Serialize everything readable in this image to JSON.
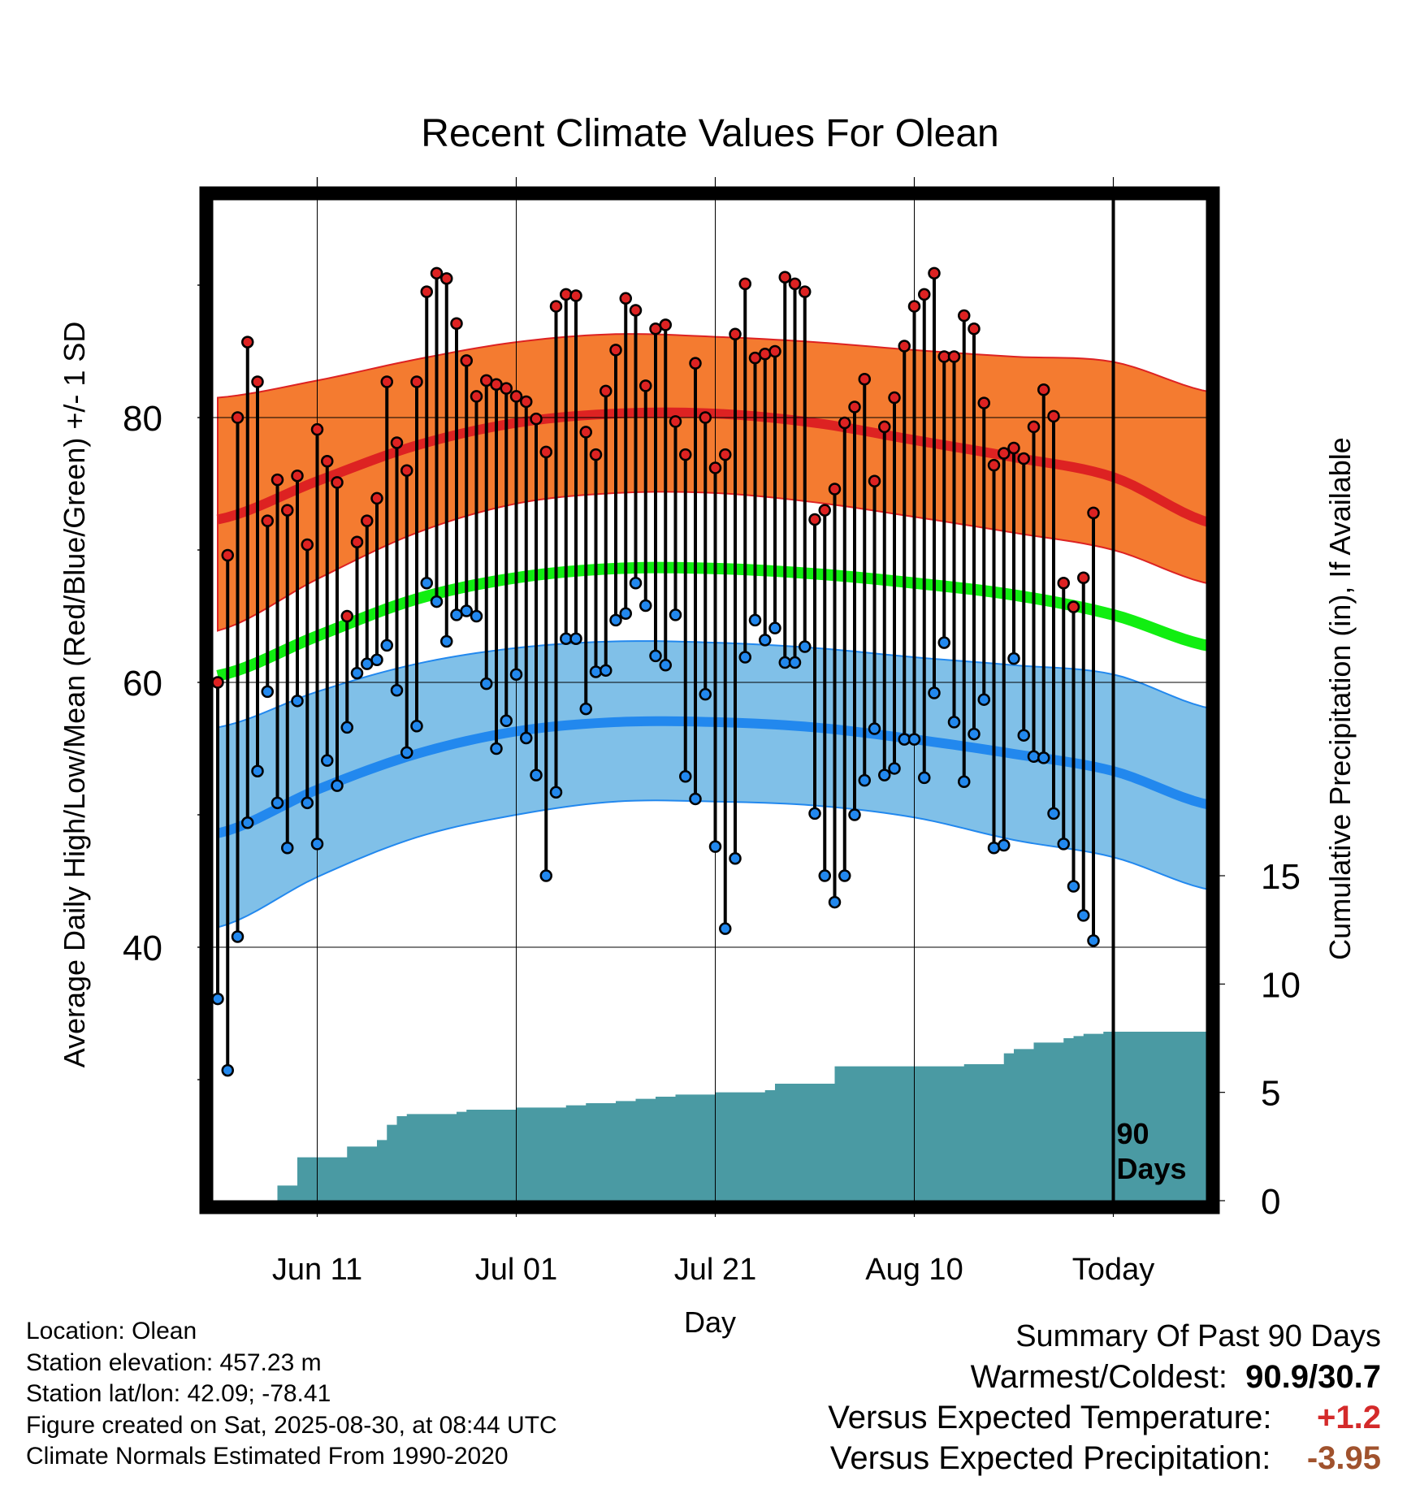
{
  "chart_data": {
    "type": "line",
    "title": "Recent Climate Values For Olean",
    "xlabel": "Day",
    "ylabel": "Average Daily High/Low/Mean (Red/Blue/Green) +/- 1 SD",
    "y2label": "Cumulative Precipitation (in), If Available",
    "ylim": [
      27.8,
      103.4
    ],
    "y2lim": [
      0,
      46.2
    ],
    "y_ticks": [
      40,
      60,
      80
    ],
    "y2_ticks": [
      0,
      5,
      10,
      15
    ],
    "x_tick_labels": [
      "Jun 11",
      "Jul 01",
      "Jul 21",
      "Aug 10",
      "Today"
    ],
    "x_tick_days": [
      10,
      30,
      50,
      70,
      90
    ],
    "today_marker_label": [
      "90",
      "Days"
    ],
    "grid": true,
    "colors": {
      "high": "#dd2222",
      "high_band": "#f47b30",
      "low": "#2288ee",
      "low_band": "#80c0e8",
      "mean": "#11ee11",
      "precip": "#4a9aa3"
    },
    "normals": {
      "day": [
        0,
        10,
        20,
        30,
        40,
        50,
        60,
        70,
        80,
        90,
        100
      ],
      "high_mean": [
        72.3,
        75.2,
        77.9,
        79.6,
        80.3,
        80.3,
        79.6,
        78.3,
        77.0,
        75.5,
        72.0
      ],
      "high_upper": [
        81.5,
        82.8,
        84.4,
        85.7,
        86.3,
        86.1,
        85.7,
        85.1,
        84.6,
        84.2,
        81.9
      ],
      "high_lower": [
        63.9,
        67.8,
        71.3,
        73.5,
        74.3,
        74.3,
        73.6,
        72.5,
        71.3,
        70.0,
        67.4
      ],
      "low_mean": [
        48.6,
        51.9,
        54.6,
        56.3,
        57.0,
        57.0,
        56.6,
        55.7,
        54.6,
        53.3,
        50.7
      ],
      "low_upper": [
        56.6,
        59.3,
        61.4,
        62.6,
        63.1,
        63.0,
        62.6,
        61.9,
        61.3,
        60.6,
        58.0
      ],
      "low_lower": [
        41.5,
        45.3,
        48.3,
        50.0,
        51.0,
        51.0,
        50.7,
        49.8,
        48.1,
        46.8,
        44.3
      ],
      "mean": [
        60.5,
        63.5,
        66.3,
        67.9,
        68.6,
        68.6,
        68.2,
        67.5,
        66.6,
        65.1,
        62.7
      ]
    },
    "daily": {
      "day": [
        0,
        1,
        2,
        3,
        4,
        5,
        6,
        7,
        8,
        9,
        10,
        11,
        12,
        13,
        14,
        15,
        16,
        17,
        18,
        19,
        20,
        21,
        22,
        23,
        24,
        25,
        26,
        27,
        28,
        29,
        30,
        31,
        32,
        33,
        34,
        35,
        36,
        37,
        38,
        39,
        40,
        41,
        42,
        43,
        44,
        45,
        46,
        47,
        48,
        49,
        50,
        51,
        52,
        53,
        54,
        55,
        56,
        57,
        58,
        59,
        60,
        61,
        62,
        63,
        64,
        65,
        66,
        67,
        68,
        69,
        70,
        71,
        72,
        73,
        74,
        75,
        76,
        77,
        78,
        79,
        80,
        81,
        82,
        83,
        84,
        85,
        86,
        87,
        88
      ],
      "high": [
        60.0,
        69.6,
        80.0,
        85.7,
        82.7,
        72.2,
        75.3,
        73.0,
        75.6,
        70.4,
        79.1,
        76.7,
        75.1,
        65.0,
        70.6,
        72.2,
        73.9,
        82.7,
        78.1,
        76.0,
        82.7,
        89.5,
        90.9,
        90.5,
        87.1,
        84.3,
        81.6,
        82.8,
        82.5,
        82.2,
        81.6,
        81.2,
        79.9,
        77.4,
        88.4,
        89.3,
        89.2,
        78.9,
        77.2,
        82.0,
        85.1,
        89.0,
        88.1,
        82.4,
        86.7,
        87.0,
        79.7,
        77.2,
        84.1,
        80.0,
        76.2,
        77.2,
        86.3,
        90.1,
        84.5,
        84.8,
        85.0,
        90.6,
        90.1,
        89.5,
        72.3,
        73.0,
        74.6,
        79.6,
        80.8,
        82.9,
        75.2,
        79.3,
        81.5,
        85.4,
        88.4,
        89.3,
        90.9,
        84.6,
        84.6,
        87.7,
        86.7,
        81.1,
        76.4,
        77.3,
        77.7,
        76.9,
        79.3,
        82.1,
        80.1,
        67.5,
        65.7,
        67.9,
        72.8
      ],
      "low": [
        36.1,
        30.7,
        40.8,
        49.4,
        53.3,
        59.3,
        50.9,
        47.5,
        58.6,
        50.9,
        47.8,
        54.1,
        52.2,
        56.6,
        60.7,
        61.4,
        61.7,
        62.8,
        59.4,
        54.7,
        56.7,
        67.5,
        66.1,
        63.1,
        65.1,
        65.4,
        65.0,
        59.9,
        55.0,
        57.1,
        60.6,
        55.8,
        53.0,
        45.4,
        51.7,
        63.3,
        63.3,
        58.0,
        60.8,
        60.9,
        64.7,
        65.2,
        67.5,
        65.8,
        62.0,
        61.3,
        65.1,
        52.9,
        51.2,
        59.1,
        47.6,
        41.4,
        46.7,
        61.9,
        64.7,
        63.2,
        64.1,
        61.5,
        61.5,
        62.7,
        50.1,
        45.4,
        43.4,
        45.4,
        50.0,
        52.6,
        56.5,
        53.0,
        53.5,
        55.7,
        55.7,
        52.8,
        59.2,
        63.0,
        57.0,
        52.5,
        56.1,
        58.7,
        47.5,
        47.7,
        61.8,
        56.0,
        54.4,
        54.3,
        50.1,
        47.8,
        44.6,
        42.4,
        40.5
      ]
    },
    "precip_cumulative": {
      "day": [
        0,
        5,
        6,
        8,
        10,
        11,
        12,
        13,
        14,
        15,
        16,
        17,
        18,
        19,
        20,
        21,
        22,
        23,
        24,
        25,
        26,
        27,
        30,
        35,
        37,
        40,
        41,
        42,
        43,
        44,
        45,
        46,
        47,
        48,
        50,
        51,
        52,
        53,
        55,
        56,
        57,
        58,
        60,
        61,
        62,
        63,
        64,
        65,
        66,
        67,
        68,
        69,
        70,
        71,
        72,
        73,
        74,
        75,
        76,
        77,
        78,
        79,
        80,
        81,
        82,
        83,
        84,
        85,
        86,
        87,
        88,
        89,
        90,
        91,
        92,
        93,
        94,
        95,
        96,
        97,
        98,
        99,
        100,
        101
      ],
      "value": [
        0,
        0,
        0.7,
        2.0,
        2.0,
        2.0,
        2.0,
        2.5,
        2.5,
        2.5,
        2.8,
        3.5,
        3.9,
        4.0,
        4.0,
        4.0,
        4.0,
        4.0,
        4.1,
        4.2,
        4.2,
        4.2,
        4.3,
        4.4,
        4.5,
        4.6,
        4.6,
        4.7,
        4.7,
        4.8,
        4.8,
        4.9,
        4.9,
        4.9,
        5.0,
        5.0,
        5.0,
        5.0,
        5.1,
        5.4,
        5.4,
        5.4,
        5.4,
        5.4,
        6.2,
        6.2,
        6.2,
        6.2,
        6.2,
        6.2,
        6.2,
        6.2,
        6.2,
        6.2,
        6.2,
        6.2,
        6.2,
        6.3,
        6.3,
        6.3,
        6.3,
        6.8,
        7.0,
        7.0,
        7.3,
        7.3,
        7.3,
        7.5,
        7.6,
        7.7,
        7.7,
        7.8,
        7.8,
        7.8,
        7.8,
        7.8,
        7.8,
        7.8,
        7.8,
        7.8,
        7.8,
        7.8,
        7.8,
        7.8
      ]
    }
  },
  "info": {
    "location": "Location: Olean",
    "elevation": "Station elevation: 457.23 m",
    "latlon": "Station lat/lon: 42.09; -78.41",
    "created": "Figure created on Sat, 2025-08-30, at 08:44 UTC",
    "normals": "Climate Normals Estimated From 1990-2020"
  },
  "summary": {
    "heading": "Summary Of Past 90 Days",
    "warm_cold_label": "Warmest/Coldest:",
    "warm_cold_value": "90.9/30.7",
    "temp_label": "Versus Expected Temperature:",
    "temp_value": "+1.2",
    "temp_color": "#d42a2a",
    "precip_label": "Versus Expected Precipitation:",
    "precip_value": "-3.95",
    "precip_color": "#a0522d"
  }
}
